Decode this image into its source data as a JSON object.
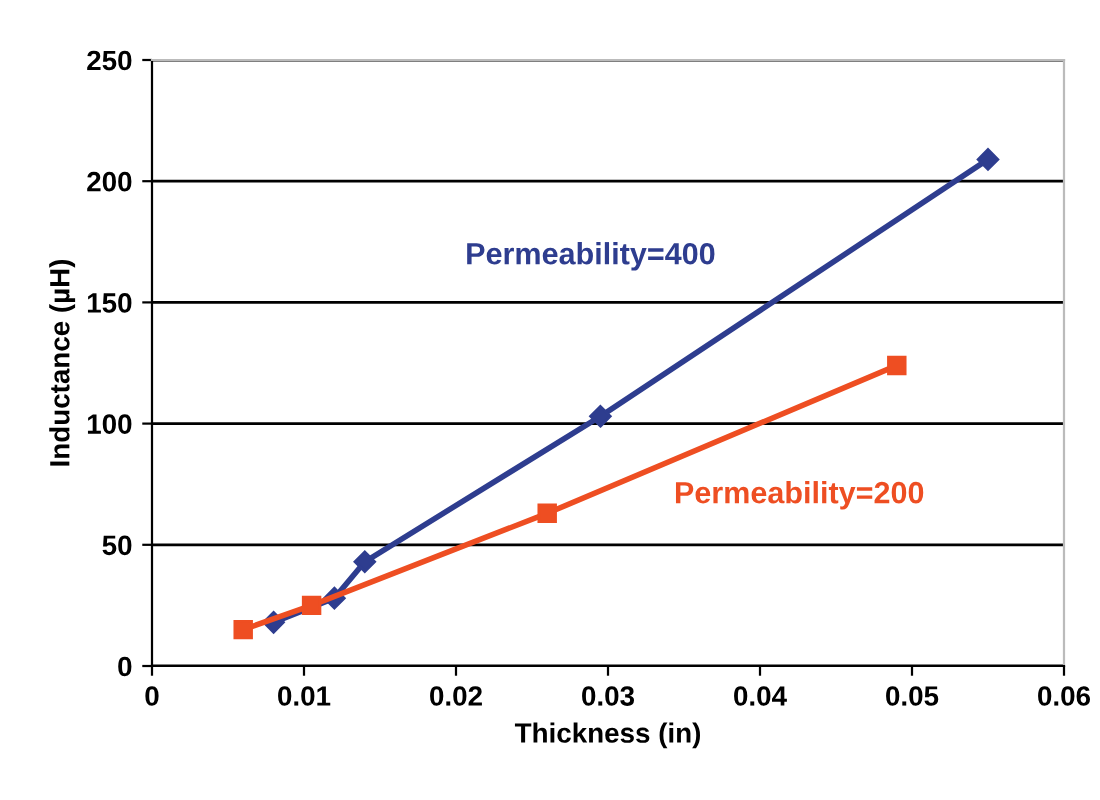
{
  "chart_data": {
    "type": "line",
    "xlabel": "Thickness (in)",
    "ylabel": "Inductance (µH)",
    "xlim": [
      0,
      0.06
    ],
    "xticks": [
      0,
      0.01,
      0.02,
      0.03,
      0.04,
      0.05,
      0.06
    ],
    "ylim": [
      0,
      250
    ],
    "yticks": [
      0,
      50,
      100,
      150,
      200,
      250
    ],
    "grid": "y",
    "legend": false,
    "series": [
      {
        "name": "Permeability=400",
        "color": "#2e3d8f",
        "marker": "diamond",
        "x": [
          0.008,
          0.012,
          0.014,
          0.0295,
          0.055
        ],
        "values": [
          18,
          28,
          43,
          103,
          209
        ]
      },
      {
        "name": "Permeability=200",
        "color": "#ee4e22",
        "marker": "square",
        "x": [
          0.006,
          0.0105,
          0.026,
          0.049
        ],
        "values": [
          15,
          25,
          63,
          124
        ]
      }
    ]
  }
}
